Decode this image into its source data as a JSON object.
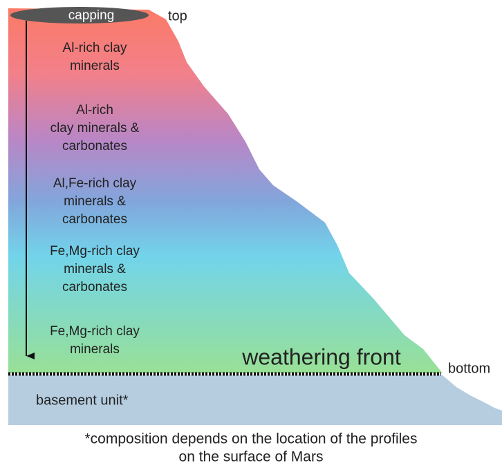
{
  "diagram": {
    "capping": "capping",
    "top_label": "top",
    "bottom_label": "bottom",
    "layers": [
      {
        "lines": [
          "Al-rich clay",
          "minerals"
        ]
      },
      {
        "lines": [
          "Al-rich",
          "clay minerals &",
          "carbonates"
        ]
      },
      {
        "lines": [
          "Al,Fe-rich clay",
          "minerals &",
          "carbonates"
        ]
      },
      {
        "lines": [
          "Fe,Mg-rich clay",
          "minerals &",
          "carbonates"
        ]
      },
      {
        "lines": [
          "Fe,Mg-rich clay",
          "minerals"
        ]
      }
    ],
    "weathering_front": "weathering front",
    "basement": "basement unit*",
    "footnote": [
      "*composition depends on the location of the profiles",
      "on the surface of Mars"
    ]
  }
}
